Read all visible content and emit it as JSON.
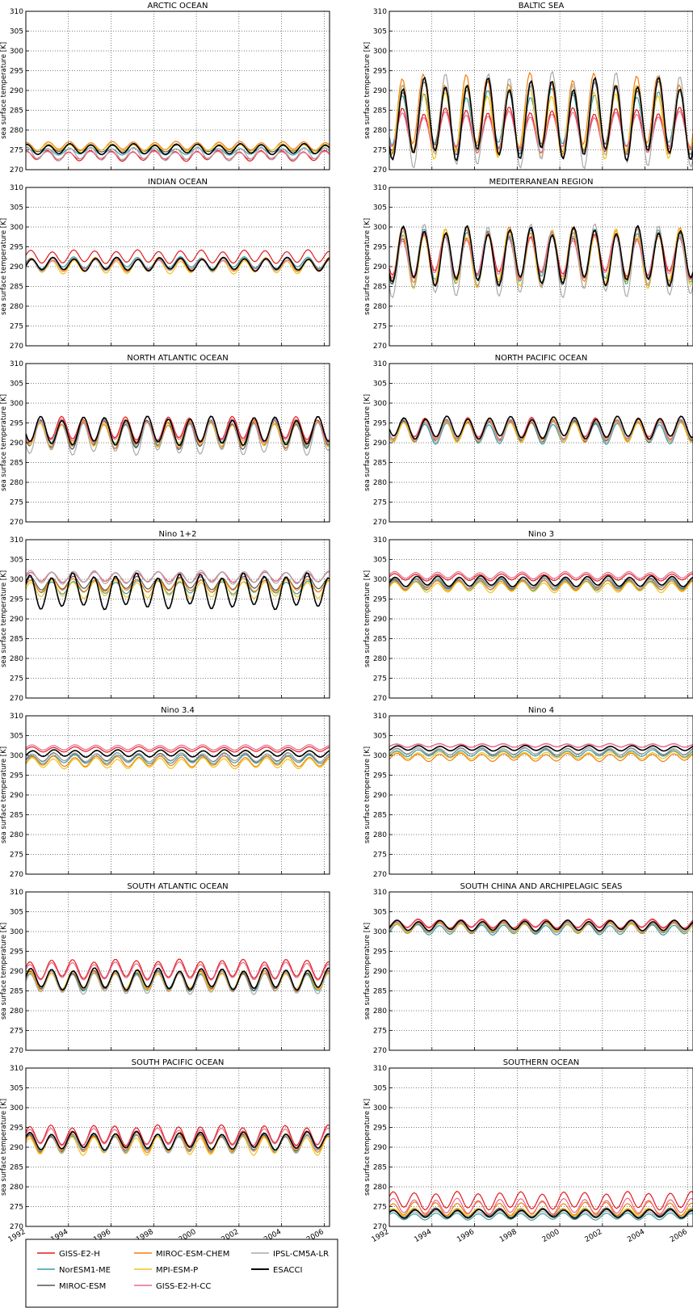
{
  "chart_data": {
    "type": "line",
    "ylabel": "sea surface temperature [K]",
    "ylim": [
      270,
      310
    ],
    "yticks": [
      270,
      275,
      280,
      285,
      290,
      295,
      300,
      305,
      310
    ],
    "xlim": [
      1992,
      2006.25
    ],
    "xticks": [
      1992,
      1994,
      1996,
      1998,
      2000,
      2002,
      2004,
      2006
    ],
    "grid": true,
    "legend_placement": "bottom-left",
    "series": [
      {
        "name": "GISS-E2-H",
        "color": "#e41a1c"
      },
      {
        "name": "NorESM1-ME",
        "color": "#3a9ea5"
      },
      {
        "name": "MIROC-ESM",
        "color": "#555555"
      },
      {
        "name": "MIROC-ESM-CHEM",
        "color": "#f07f10"
      },
      {
        "name": "MPI-ESM-P",
        "color": "#f2c21b"
      },
      {
        "name": "GISS-E2-H-CC",
        "color": "#e9698e"
      },
      {
        "name": "IPSL-CM5A-LR",
        "color": "#a9a9a9"
      },
      {
        "name": "ESACCI",
        "color": "#000000"
      }
    ],
    "panels": [
      {
        "title": "ARCTIC OCEAN",
        "series_params": [
          [
            273.5,
            1.2,
            0.02
          ],
          [
            274.6,
            0.8,
            0.04
          ],
          [
            275.4,
            0.8,
            0.06
          ],
          [
            276.0,
            1.0,
            0.05
          ],
          [
            275.6,
            0.8,
            0.03
          ],
          [
            273.6,
            0.9,
            0.02
          ],
          [
            274.0,
            1.5,
            0.05
          ],
          [
            275.2,
            1.2,
            0.06
          ]
        ]
      },
      {
        "title": "BALTIC SEA",
        "series_params": [
          [
            280.0,
            5.0,
            0.62
          ],
          [
            282.5,
            7.0,
            0.62
          ],
          [
            283.0,
            8.0,
            0.63
          ],
          [
            284.0,
            9.0,
            0.6
          ],
          [
            282.0,
            8.0,
            0.61
          ],
          [
            279.5,
            4.5,
            0.62
          ],
          [
            282.5,
            10.5,
            0.64
          ],
          [
            282.8,
            9.0,
            0.64
          ]
        ]
      },
      {
        "title": "INDIAN OCEAN",
        "series_params": [
          [
            292.5,
            1.5,
            0.24
          ],
          [
            291.0,
            1.3,
            0.25
          ],
          [
            290.5,
            1.5,
            0.25
          ],
          [
            290.5,
            1.6,
            0.25
          ],
          [
            290.0,
            1.6,
            0.25
          ],
          [
            290.5,
            1.3,
            0.26
          ],
          [
            290.5,
            1.5,
            0.25
          ],
          [
            290.6,
            1.5,
            0.27
          ]
        ]
      },
      {
        "title": "MEDITERRANEAN REGION",
        "series_params": [
          [
            293.0,
            5.0,
            0.63
          ],
          [
            292.5,
            6.0,
            0.63
          ],
          [
            292.5,
            6.5,
            0.63
          ],
          [
            292.5,
            6.5,
            0.63
          ],
          [
            292.0,
            6.5,
            0.63
          ],
          [
            292.5,
            5.0,
            0.62
          ],
          [
            291.5,
            8.0,
            0.64
          ],
          [
            292.7,
            6.5,
            0.65
          ]
        ]
      },
      {
        "title": "NORTH ATLANTIC OCEAN",
        "series_params": [
          [
            293.5,
            2.7,
            0.68
          ],
          [
            292.5,
            3.0,
            0.68
          ],
          [
            292.0,
            3.2,
            0.68
          ],
          [
            292.0,
            3.0,
            0.68
          ],
          [
            292.5,
            3.0,
            0.68
          ],
          [
            293.0,
            2.6,
            0.68
          ],
          [
            291.5,
            4.0,
            0.69
          ],
          [
            293.0,
            3.2,
            0.7
          ]
        ]
      },
      {
        "title": "NORTH PACIFIC OCEAN",
        "series_params": [
          [
            293.5,
            2.5,
            0.68
          ],
          [
            292.5,
            2.5,
            0.68
          ],
          [
            293.0,
            2.5,
            0.68
          ],
          [
            293.0,
            2.5,
            0.68
          ],
          [
            293.0,
            2.5,
            0.68
          ],
          [
            293.5,
            2.3,
            0.68
          ],
          [
            293.0,
            2.6,
            0.69
          ],
          [
            293.8,
            2.5,
            0.7
          ]
        ]
      },
      {
        "title": "Nino 1+2",
        "series_params": [
          [
            300.5,
            1.2,
            0.22
          ],
          [
            298.0,
            1.5,
            0.22
          ],
          [
            299.0,
            1.5,
            0.22
          ],
          [
            298.5,
            1.5,
            0.22
          ],
          [
            297.5,
            2.0,
            0.22
          ],
          [
            300.5,
            1.2,
            0.22
          ],
          [
            300.5,
            1.5,
            0.22
          ],
          [
            297.0,
            4.0,
            0.2
          ]
        ]
      },
      {
        "title": "Nino 3",
        "series_params": [
          [
            300.5,
            0.8,
            0.25
          ],
          [
            298.5,
            1.2,
            0.25
          ],
          [
            299.0,
            1.2,
            0.25
          ],
          [
            298.5,
            1.2,
            0.25
          ],
          [
            298.0,
            1.2,
            0.25
          ],
          [
            301.0,
            0.8,
            0.25
          ],
          [
            299.0,
            1.2,
            0.25
          ],
          [
            299.5,
            1.2,
            0.28
          ]
        ]
      },
      {
        "title": "Nino 3.4",
        "series_params": [
          [
            301.5,
            0.6,
            0.3
          ],
          [
            299.0,
            1.0,
            0.3
          ],
          [
            299.5,
            1.0,
            0.3
          ],
          [
            298.5,
            1.2,
            0.3
          ],
          [
            298.0,
            1.2,
            0.3
          ],
          [
            302.0,
            0.6,
            0.3
          ],
          [
            299.5,
            1.0,
            0.3
          ],
          [
            300.5,
            0.8,
            0.32
          ]
        ]
      },
      {
        "title": "Nino 4",
        "series_params": [
          [
            302.5,
            0.4,
            0.35
          ],
          [
            300.5,
            0.8,
            0.35
          ],
          [
            301.0,
            0.8,
            0.35
          ],
          [
            299.5,
            0.9,
            0.35
          ],
          [
            300.0,
            0.8,
            0.35
          ],
          [
            302.5,
            0.4,
            0.35
          ],
          [
            301.0,
            0.8,
            0.35
          ],
          [
            301.8,
            0.6,
            0.38
          ]
        ]
      },
      {
        "title": "SOUTH ATLANTIC OCEAN",
        "series_params": [
          [
            290.5,
            2.2,
            0.2
          ],
          [
            287.5,
            2.2,
            0.2
          ],
          [
            287.5,
            2.3,
            0.2
          ],
          [
            287.5,
            2.3,
            0.2
          ],
          [
            287.5,
            2.2,
            0.2
          ],
          [
            290.0,
            2.0,
            0.2
          ],
          [
            287.0,
            2.5,
            0.2
          ],
          [
            288.0,
            2.4,
            0.22
          ]
        ]
      },
      {
        "title": "SOUTH CHINA AND ARCHIPELAGIC SEAS",
        "series_params": [
          [
            302.0,
            1.0,
            0.35
          ],
          [
            300.5,
            1.2,
            0.35
          ],
          [
            301.0,
            1.2,
            0.35
          ],
          [
            301.0,
            1.2,
            0.35
          ],
          [
            301.0,
            1.1,
            0.35
          ],
          [
            301.8,
            1.0,
            0.35
          ],
          [
            301.0,
            1.2,
            0.35
          ],
          [
            301.5,
            1.2,
            0.37
          ]
        ]
      },
      {
        "title": "SOUTH PACIFIC OCEAN",
        "series_params": [
          [
            293.0,
            2.3,
            0.18
          ],
          [
            291.0,
            2.0,
            0.18
          ],
          [
            291.0,
            2.0,
            0.18
          ],
          [
            291.0,
            2.1,
            0.18
          ],
          [
            290.5,
            2.2,
            0.18
          ],
          [
            292.5,
            2.0,
            0.18
          ],
          [
            291.0,
            2.2,
            0.18
          ],
          [
            291.6,
            2.0,
            0.2
          ]
        ]
      },
      {
        "title": "SOUTHERN OCEAN",
        "series_params": [
          [
            276.5,
            2.0,
            0.18
          ],
          [
            272.5,
            0.8,
            0.18
          ],
          [
            273.5,
            1.0,
            0.18
          ],
          [
            274.5,
            1.5,
            0.18
          ],
          [
            273.5,
            1.0,
            0.18
          ],
          [
            275.0,
            1.8,
            0.18
          ],
          [
            273.0,
            0.8,
            0.18
          ],
          [
            273.2,
            1.0,
            0.2
          ]
        ]
      }
    ]
  }
}
